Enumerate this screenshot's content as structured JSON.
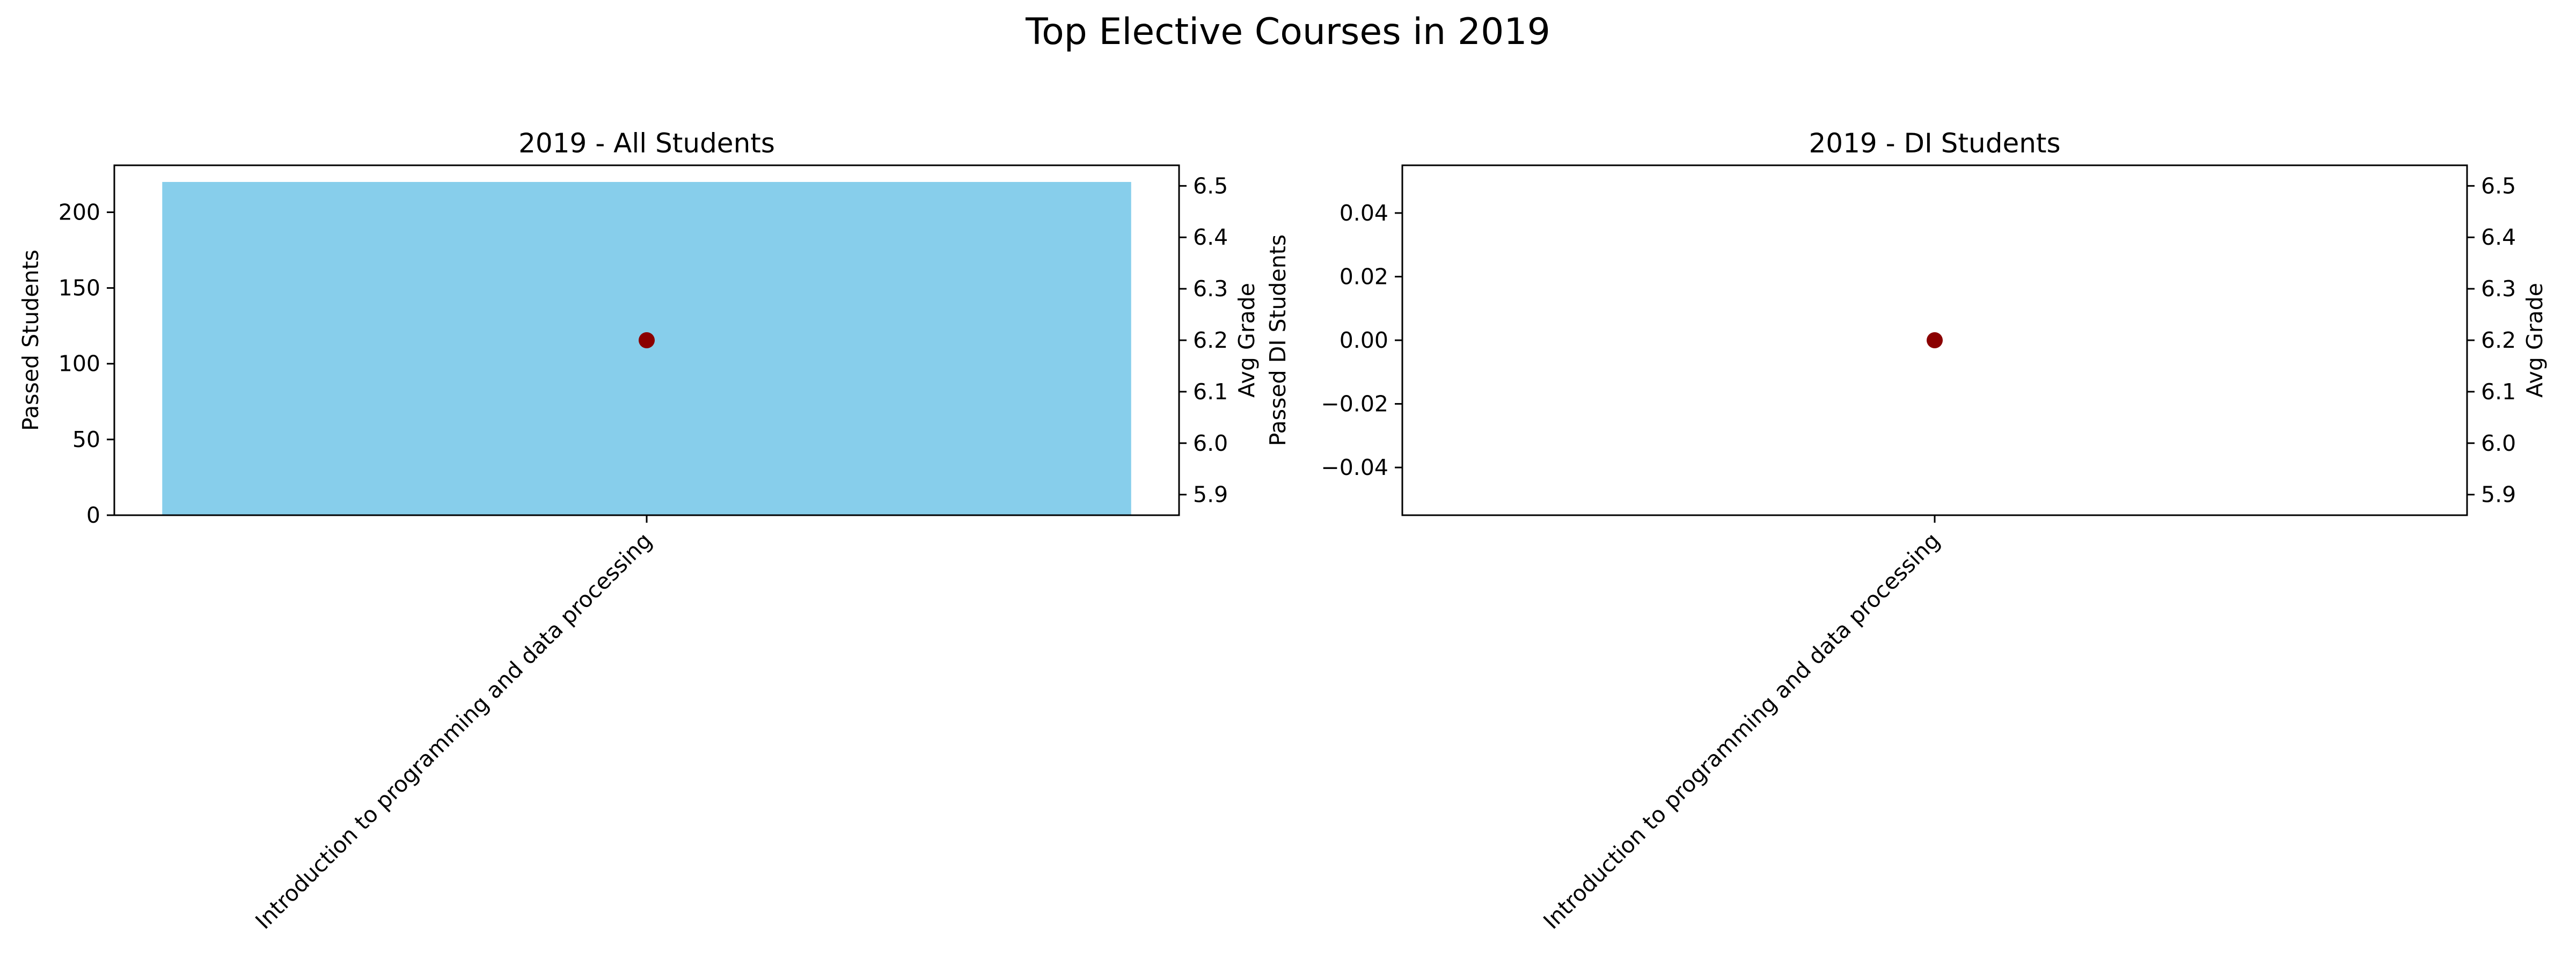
{
  "figure": {
    "suptitle": "Top Elective Courses in 2019"
  },
  "colors": {
    "bar": "#87CEEB",
    "point": "#8B0000",
    "axis": "#000000"
  },
  "chart_data": [
    {
      "type": "bar",
      "title": "2019 - All Students",
      "xlabel": "",
      "ylabel": "Passed Students",
      "y2label": "Avg Grade",
      "categories": [
        "Introduction to programming and data processing"
      ],
      "series": [
        {
          "axis": "left",
          "kind": "bar",
          "values": [
            220
          ]
        },
        {
          "axis": "right",
          "kind": "scatter",
          "values": [
            6.2
          ]
        }
      ],
      "ylim": [
        0,
        231
      ],
      "y2lim": [
        5.86,
        6.54
      ],
      "yticks": [
        0,
        50,
        100,
        150,
        200
      ],
      "y2ticks": [
        5.9,
        6.0,
        6.1,
        6.2,
        6.3,
        6.4,
        6.5
      ],
      "grid": false
    },
    {
      "type": "bar",
      "title": "2019 - DI Students",
      "xlabel": "",
      "ylabel": "Passed DI Students",
      "y2label": "Avg Grade",
      "categories": [
        "Introduction to programming and data processing"
      ],
      "series": [
        {
          "axis": "left",
          "kind": "bar",
          "values": [
            0
          ]
        },
        {
          "axis": "right",
          "kind": "scatter",
          "values": [
            6.2
          ]
        }
      ],
      "ylim": [
        -0.055,
        0.055
      ],
      "y2lim": [
        5.86,
        6.54
      ],
      "yticks": [
        -0.04,
        -0.02,
        0.0,
        0.02,
        0.04
      ],
      "ytick_labels": [
        "−0.04",
        "−0.02",
        "0.00",
        "0.02",
        "0.04"
      ],
      "y2ticks": [
        5.9,
        6.0,
        6.1,
        6.2,
        6.3,
        6.4,
        6.5
      ],
      "grid": false
    }
  ]
}
